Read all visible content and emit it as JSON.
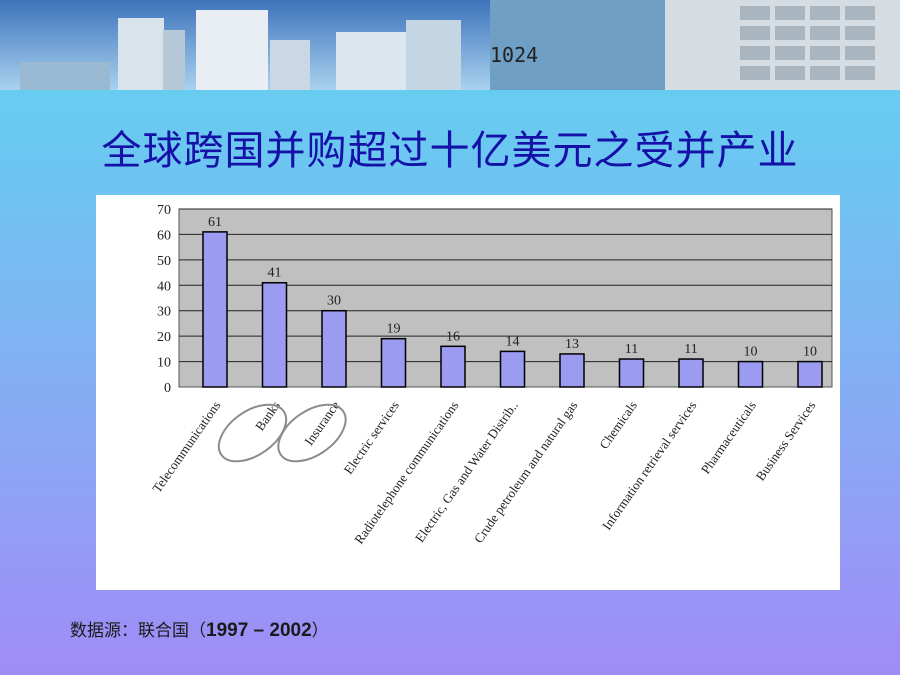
{
  "header": {
    "title": "全球跨国并购超过十亿美元之受并产业",
    "banner_display_digits": "1024"
  },
  "chart_data": {
    "type": "bar",
    "title": "",
    "xlabel": "",
    "ylabel": "",
    "ylim": [
      0,
      70
    ],
    "yticks": [
      0,
      10,
      20,
      30,
      40,
      50,
      60,
      70
    ],
    "grid": true,
    "categories": [
      "Telecommunications",
      "Banks",
      "Insurance",
      "Electric services",
      "Radiotelephone communications",
      "Electric, Gas and Water Distrib..",
      "Crude petroleum and natural gas",
      "Chemicals",
      "Information retrieval services",
      "Pharmaceuticals",
      "Business Services"
    ],
    "values": [
      61,
      41,
      30,
      19,
      16,
      14,
      13,
      11,
      11,
      10,
      10
    ],
    "highlighted_categories": [
      "Banks",
      "Insurance"
    ],
    "colors": {
      "bar": "#9b9bf2",
      "plot_bg": "#c0c0c0",
      "highlight_ring": "#8c8c8c"
    }
  },
  "footer": {
    "source_label": "数据源：联合国（",
    "years": "1997 – 2002",
    "close_paren": "）"
  }
}
